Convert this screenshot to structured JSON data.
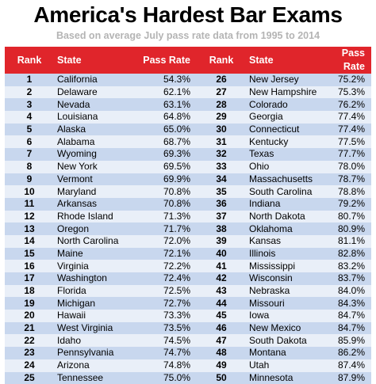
{
  "title": "America's Hardest Bar Exams",
  "subtitle": "Based on average July pass rate data from 1995 to 2014",
  "headers": {
    "rank": "Rank",
    "state": "State",
    "rate": "Pass Rate",
    "rank2": "Rank",
    "state2": "State",
    "rate2": "Pass Rate"
  },
  "colors": {
    "header": "#e0252b",
    "row_dark": "#c8d7ee",
    "row_light": "#e9eff8",
    "subtitle": "#b4b4b4"
  },
  "rows": [
    {
      "rank": "1",
      "state": "California",
      "rate": "54.3%",
      "rank2": "26",
      "state2": "New Jersey",
      "rate2": "75.2%"
    },
    {
      "rank": "2",
      "state": "Delaware",
      "rate": "62.1%",
      "rank2": "27",
      "state2": "New Hampshire",
      "rate2": "75.3%"
    },
    {
      "rank": "3",
      "state": "Nevada",
      "rate": "63.1%",
      "rank2": "28",
      "state2": "Colorado",
      "rate2": "76.2%"
    },
    {
      "rank": "4",
      "state": "Louisiana",
      "rate": "64.8%",
      "rank2": "29",
      "state2": "Georgia",
      "rate2": "77.4%"
    },
    {
      "rank": "5",
      "state": "Alaska",
      "rate": "65.0%",
      "rank2": "30",
      "state2": "Connecticut",
      "rate2": "77.4%"
    },
    {
      "rank": "6",
      "state": "Alabama",
      "rate": "68.7%",
      "rank2": "31",
      "state2": "Kentucky",
      "rate2": "77.5%"
    },
    {
      "rank": "7",
      "state": "Wyoming",
      "rate": "69.3%",
      "rank2": "32",
      "state2": "Texas",
      "rate2": "77.7%"
    },
    {
      "rank": "8",
      "state": "New York",
      "rate": "69.5%",
      "rank2": "33",
      "state2": "Ohio",
      "rate2": "78.0%"
    },
    {
      "rank": "9",
      "state": "Vermont",
      "rate": "69.9%",
      "rank2": "34",
      "state2": "Massachusetts",
      "rate2": "78.7%"
    },
    {
      "rank": "10",
      "state": "Maryland",
      "rate": "70.8%",
      "rank2": "35",
      "state2": "South Carolina",
      "rate2": "78.8%"
    },
    {
      "rank": "11",
      "state": "Arkansas",
      "rate": "70.8%",
      "rank2": "36",
      "state2": "Indiana",
      "rate2": "79.2%"
    },
    {
      "rank": "12",
      "state": "Rhode Island",
      "rate": "71.3%",
      "rank2": "37",
      "state2": "North Dakota",
      "rate2": "80.7%"
    },
    {
      "rank": "13",
      "state": "Oregon",
      "rate": "71.7%",
      "rank2": "38",
      "state2": "Oklahoma",
      "rate2": "80.9%"
    },
    {
      "rank": "14",
      "state": "North Carolina",
      "rate": "72.0%",
      "rank2": "39",
      "state2": "Kansas",
      "rate2": "81.1%"
    },
    {
      "rank": "15",
      "state": "Maine",
      "rate": "72.1%",
      "rank2": "40",
      "state2": "Illinois",
      "rate2": "82.8%"
    },
    {
      "rank": "16",
      "state": "Virginia",
      "rate": "72.2%",
      "rank2": "41",
      "state2": "Mississippi",
      "rate2": "83.2%"
    },
    {
      "rank": "17",
      "state": "Washington",
      "rate": "72.4%",
      "rank2": "42",
      "state2": "Wisconsin",
      "rate2": "83.7%"
    },
    {
      "rank": "18",
      "state": "Florida",
      "rate": "72.5%",
      "rank2": "43",
      "state2": "Nebraska",
      "rate2": "84.0%"
    },
    {
      "rank": "19",
      "state": "Michigan",
      "rate": "72.7%",
      "rank2": "44",
      "state2": "Missouri",
      "rate2": "84.3%"
    },
    {
      "rank": "20",
      "state": "Hawaii",
      "rate": "73.3%",
      "rank2": "45",
      "state2": "Iowa",
      "rate2": "84.7%"
    },
    {
      "rank": "21",
      "state": "West Virginia",
      "rate": "73.5%",
      "rank2": "46",
      "state2": "New Mexico",
      "rate2": "84.7%"
    },
    {
      "rank": "22",
      "state": "Idaho",
      "rate": "74.5%",
      "rank2": "47",
      "state2": "South Dakota",
      "rate2": "85.9%"
    },
    {
      "rank": "23",
      "state": "Pennsylvania",
      "rate": "74.7%",
      "rank2": "48",
      "state2": "Montana",
      "rate2": "86.2%"
    },
    {
      "rank": "24",
      "state": "Arizona",
      "rate": "74.8%",
      "rank2": "49",
      "state2": "Utah",
      "rate2": "87.4%"
    },
    {
      "rank": "25",
      "state": "Tennessee",
      "rate": "75.0%",
      "rank2": "50",
      "state2": "Minnesota",
      "rate2": "87.9%"
    }
  ]
}
